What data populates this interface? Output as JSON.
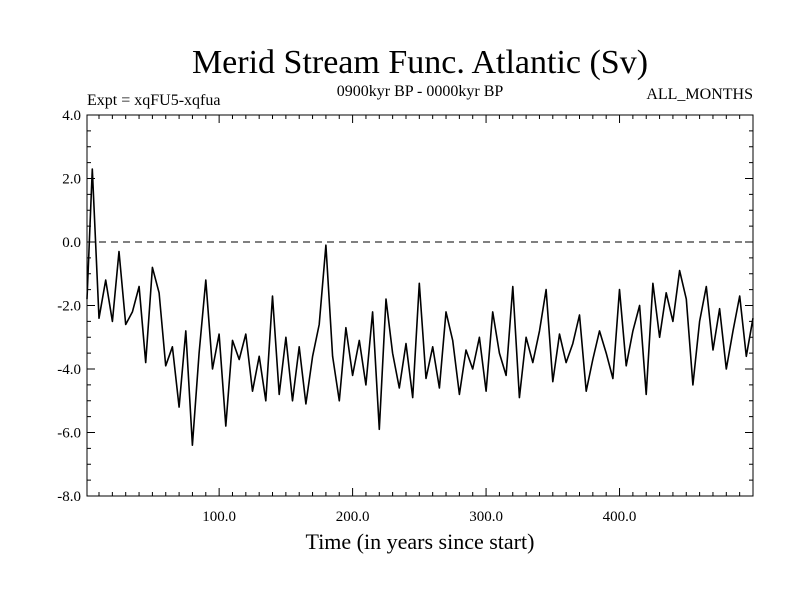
{
  "chart_data": {
    "type": "line",
    "title": "Merid Stream Func. Atlantic (Sv)",
    "subtitle_left": "Expt = xqFU5-xqfua",
    "subtitle_center": "0900kyr BP - 0000kyr BP",
    "subtitle_right": "ALL_MONTHS",
    "xlabel": "Time (in years since start)",
    "ylabel": "",
    "xlim": [
      1,
      500
    ],
    "ylim": [
      -8.0,
      4.0
    ],
    "xticks": [
      100,
      200,
      300,
      400
    ],
    "xtick_labels": [
      "100.0",
      "200.0",
      "300.0",
      "400.0"
    ],
    "yticks": [
      -8,
      -6,
      -4,
      -2,
      0,
      2,
      4
    ],
    "ytick_labels": [
      "-8.0",
      "-6.0",
      "-4.0",
      "-2.0",
      "0.0",
      "2.0",
      "4.0"
    ],
    "reference_line": {
      "y": 0.0,
      "style": "dashed"
    },
    "series": [
      {
        "name": "Merid Stream Func.",
        "x": [
          1,
          5,
          10,
          15,
          20,
          25,
          30,
          35,
          40,
          45,
          50,
          55,
          60,
          65,
          70,
          75,
          80,
          85,
          90,
          95,
          100,
          105,
          110,
          115,
          120,
          125,
          130,
          135,
          140,
          145,
          150,
          155,
          160,
          165,
          170,
          175,
          180,
          185,
          190,
          195,
          200,
          205,
          210,
          215,
          220,
          225,
          230,
          235,
          240,
          245,
          250,
          255,
          260,
          265,
          270,
          275,
          280,
          285,
          290,
          295,
          300,
          305,
          310,
          315,
          320,
          325,
          330,
          335,
          340,
          345,
          350,
          355,
          360,
          365,
          370,
          375,
          380,
          385,
          390,
          395,
          400,
          405,
          410,
          415,
          420,
          425,
          430,
          435,
          440,
          445,
          450,
          455,
          460,
          465,
          470,
          475,
          480,
          485,
          490,
          495,
          500
        ],
        "values": [
          -1.8,
          2.3,
          -2.4,
          -1.2,
          -2.5,
          -0.3,
          -2.6,
          -2.2,
          -1.4,
          -3.8,
          -0.8,
          -1.6,
          -3.9,
          -3.3,
          -5.2,
          -2.8,
          -6.4,
          -3.5,
          -1.2,
          -4.0,
          -2.9,
          -5.8,
          -3.1,
          -3.7,
          -2.9,
          -4.7,
          -3.6,
          -5.0,
          -1.7,
          -4.8,
          -3.0,
          -5.0,
          -3.3,
          -5.1,
          -3.6,
          -2.6,
          -0.1,
          -3.6,
          -5.0,
          -2.7,
          -4.2,
          -3.1,
          -4.5,
          -2.2,
          -5.9,
          -1.8,
          -3.5,
          -4.6,
          -3.2,
          -4.9,
          -1.3,
          -4.3,
          -3.3,
          -4.6,
          -2.2,
          -3.1,
          -4.8,
          -3.4,
          -4.0,
          -3.0,
          -4.7,
          -2.2,
          -3.5,
          -4.2,
          -1.4,
          -4.9,
          -3.0,
          -3.8,
          -2.8,
          -1.5,
          -4.4,
          -2.9,
          -3.8,
          -3.2,
          -2.3,
          -4.7,
          -3.7,
          -2.8,
          -3.5,
          -4.3,
          -1.5,
          -3.9,
          -2.8,
          -2.0,
          -4.8,
          -1.3,
          -3.0,
          -1.6,
          -2.5,
          -0.9,
          -1.8,
          -4.5,
          -2.5,
          -1.4,
          -3.4,
          -2.1,
          -4.0,
          -2.8,
          -1.7,
          -3.6,
          -2.4
        ]
      }
    ]
  }
}
